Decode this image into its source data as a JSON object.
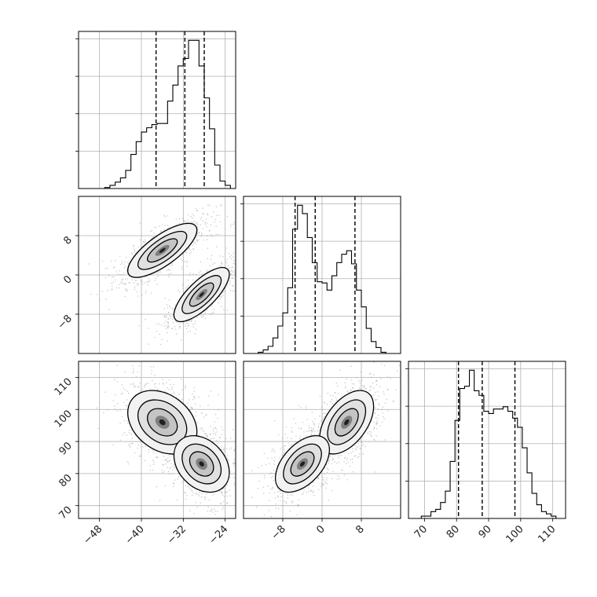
{
  "chart_data": {
    "type": "corner",
    "title": "",
    "parameters": [
      "",
      "",
      ""
    ],
    "grid": true,
    "histograms": [
      {
        "param": 0,
        "xlim": [
          -52,
          -22
        ],
        "bins": [
          -50,
          -49,
          -48,
          -47,
          -46,
          -45,
          -44,
          -43,
          -42,
          -41,
          -40,
          -39,
          -38,
          -37,
          -36,
          -35,
          -34,
          -33,
          -32,
          -31,
          -30,
          -29,
          -28,
          -27,
          -26,
          -25,
          -24,
          -23
        ],
        "counts": [
          0,
          0,
          0,
          1,
          3,
          6,
          10,
          17,
          32,
          44,
          53,
          57,
          60,
          61,
          61,
          82,
          97,
          115,
          122,
          139,
          139,
          115,
          85,
          56,
          22,
          7,
          3,
          0
        ],
        "quantiles": [
          -37.2,
          -31.7,
          -28.0
        ]
      },
      {
        "param": 1,
        "xlim": [
          -16,
          16
        ],
        "bins": [
          -14,
          -13,
          -12,
          -11,
          -10,
          -9,
          -8,
          -7,
          -6,
          -5,
          -4,
          -3,
          -2,
          -1,
          0,
          1,
          2,
          3,
          4,
          5,
          6,
          7,
          8,
          9,
          10,
          11,
          12,
          13
        ],
        "counts": [
          0,
          1,
          3,
          6,
          13,
          23,
          34,
          55,
          104,
          124,
          117,
          97,
          76,
          60,
          59,
          53,
          65,
          76,
          83,
          86,
          75,
          53,
          39,
          21,
          10,
          5,
          1,
          0
        ],
        "quantiles": [
          -5.5,
          -1.4,
          6.7
        ]
      },
      {
        "param": 2,
        "xlim": [
          65,
          114
        ],
        "bins": [
          66,
          67.5,
          69,
          70.5,
          72,
          73.5,
          75,
          76.5,
          78,
          79.5,
          81,
          82.5,
          84,
          85.5,
          87,
          88.5,
          90,
          91.5,
          93,
          94.5,
          96,
          97.5,
          99,
          100.5,
          102,
          103.5,
          105,
          106.5,
          108,
          109.5,
          111,
          112.5
        ],
        "counts": [
          0,
          0,
          1,
          1,
          3,
          4,
          7,
          12,
          25,
          43,
          57,
          58,
          65,
          56,
          54,
          47,
          46,
          48,
          48,
          49,
          47,
          44,
          40,
          31,
          20,
          11,
          6,
          3,
          2,
          1,
          0,
          0
        ],
        "quantiles": [
          80.6,
          88.0,
          98.2
        ]
      }
    ],
    "contours": [
      {
        "x_param": 0,
        "y_param": 1,
        "xlim": [
          -52,
          -22
        ],
        "ylim": [
          -16,
          16
        ],
        "modes": [
          {
            "center": [
              -36.0,
              5.0
            ],
            "sigma": [
              3.0,
              2.5
            ],
            "rho": 0.75
          },
          {
            "center": [
              -28.5,
              -4.0
            ],
            "sigma": [
              2.4,
              2.5
            ],
            "rho": 0.75
          }
        ]
      },
      {
        "x_param": 0,
        "y_param": 2,
        "xlim": [
          -52,
          -22
        ],
        "ylim": [
          66,
          115
        ],
        "modes": [
          {
            "center": [
              -36.0,
              96.0
            ],
            "sigma": [
              3.0,
              4.5
            ],
            "rho": -0.3
          },
          {
            "center": [
              -28.5,
              83.0
            ],
            "sigma": [
              2.4,
              4.0
            ],
            "rho": -0.3
          }
        ]
      },
      {
        "x_param": 1,
        "y_param": 2,
        "xlim": [
          -16,
          16
        ],
        "ylim": [
          66,
          115
        ],
        "modes": [
          {
            "center": [
              5.0,
              96.0
            ],
            "sigma": [
              2.5,
              4.5
            ],
            "rho": 0.5
          },
          {
            "center": [
              -4.0,
              83.0
            ],
            "sigma": [
              2.5,
              4.0
            ],
            "rho": 0.5
          }
        ]
      }
    ],
    "tick_labels": {
      "param0": [
        "−48",
        "−40",
        "−32",
        "−24"
      ],
      "param1": [
        "−8",
        "0",
        "8"
      ],
      "param2": [
        "70",
        "80",
        "90",
        "100",
        "110"
      ]
    },
    "tick_values": {
      "param0": [
        -48,
        -40,
        -32,
        -24
      ],
      "param1": [
        -8,
        0,
        8
      ],
      "param2": [
        70,
        80,
        90,
        100,
        110
      ]
    }
  }
}
